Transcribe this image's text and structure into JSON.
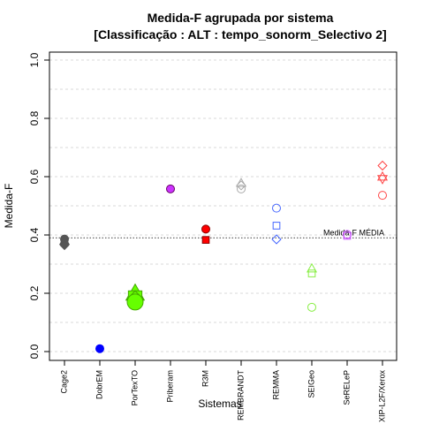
{
  "chart_data": {
    "type": "scatter",
    "title_line1": "Medida-F agrupada por sistema",
    "title_line2": "[Classificação : ALT : tempo_sonorm_Selectivo 2]",
    "xlabel": "Sistemas",
    "ylabel": "Medida-F",
    "ylim": [
      0.0,
      1.0
    ],
    "yticks": [
      {
        "value": 0.0,
        "label": "0.0"
      },
      {
        "value": 0.2,
        "label": "0.2"
      },
      {
        "value": 0.4,
        "label": "0.4"
      },
      {
        "value": 0.6,
        "label": "0.6"
      },
      {
        "value": 0.8,
        "label": "0.8"
      },
      {
        "value": 1.0,
        "label": "1.0"
      }
    ],
    "grid": true,
    "categories": [
      "Cage2",
      "DobrEM",
      "PorTexTO",
      "Priberam",
      "R3M",
      "REMBRANDT",
      "REMMA",
      "SEIGeo",
      "SeRELeP",
      "XIP-L2F/Xerox"
    ],
    "reference_line": {
      "value": 0.39,
      "label": "Medida-F MÉDIA"
    },
    "points": [
      {
        "category": "Cage2",
        "y": 0.386,
        "shape": "circle",
        "color": "#555555",
        "fill": "#555555"
      },
      {
        "category": "Cage2",
        "y": 0.38,
        "shape": "triangle",
        "color": "#555555",
        "fill": "#555555"
      },
      {
        "category": "Cage2",
        "y": 0.377,
        "shape": "square",
        "color": "#555555",
        "fill": "#555555"
      },
      {
        "category": "Cage2",
        "y": 0.365,
        "shape": "diamond",
        "color": "#555555",
        "fill": "#555555"
      },
      {
        "category": "DobrEM",
        "y": 0.01,
        "shape": "circle",
        "color": "#0000ff",
        "fill": "#0000ff"
      },
      {
        "category": "PorTexTO",
        "y": 0.2,
        "shape": "triangle",
        "color": "#44aa00",
        "fill": "#66ff00",
        "size": 9
      },
      {
        "category": "PorTexTO",
        "y": 0.185,
        "shape": "square",
        "color": "#44aa00",
        "fill": "#66ff00",
        "size": 9
      },
      {
        "category": "PorTexTO",
        "y": 0.178,
        "shape": "diamond",
        "color": "#44aa00",
        "fill": "#66ff00",
        "size": 9
      },
      {
        "category": "PorTexTO",
        "y": 0.17,
        "shape": "circle",
        "color": "#44aa00",
        "fill": "#66ff00",
        "size": 9
      },
      {
        "category": "Priberam",
        "y": 0.558,
        "shape": "circle",
        "color": "#660066",
        "fill": "#cc33ff"
      },
      {
        "category": "R3M",
        "y": 0.42,
        "shape": "circle",
        "color": "#880000",
        "fill": "#ff0000"
      },
      {
        "category": "R3M",
        "y": 0.383,
        "shape": "square",
        "color": "#880000",
        "fill": "#ff0000"
      },
      {
        "category": "REMBRANDT",
        "y": 0.578,
        "shape": "triangle",
        "color": "#aaaaaa",
        "fill": "none"
      },
      {
        "category": "REMBRANDT",
        "y": 0.57,
        "shape": "diamond",
        "color": "#aaaaaa",
        "fill": "none"
      },
      {
        "category": "REMBRANDT",
        "y": 0.558,
        "shape": "circle",
        "color": "#aaaaaa",
        "fill": "none"
      },
      {
        "category": "REMMA",
        "y": 0.492,
        "shape": "circle",
        "color": "#4466ff",
        "fill": "none"
      },
      {
        "category": "REMMA",
        "y": 0.432,
        "shape": "square",
        "color": "#4466ff",
        "fill": "none"
      },
      {
        "category": "REMMA",
        "y": 0.385,
        "shape": "diamond",
        "color": "#4466ff",
        "fill": "none"
      },
      {
        "category": "SEIGeo",
        "y": 0.285,
        "shape": "triangle",
        "color": "#88ee44",
        "fill": "none"
      },
      {
        "category": "SEIGeo",
        "y": 0.268,
        "shape": "square",
        "color": "#88ee44",
        "fill": "none"
      },
      {
        "category": "SEIGeo",
        "y": 0.152,
        "shape": "circle",
        "color": "#88ee44",
        "fill": "none"
      },
      {
        "category": "SeRELeP",
        "y": 0.402,
        "shape": "circle",
        "color": "#cc55ff",
        "fill": "none"
      },
      {
        "category": "SeRELeP",
        "y": 0.397,
        "shape": "square",
        "color": "#cc55ff",
        "fill": "none"
      },
      {
        "category": "XIP-L2F/Xerox",
        "y": 0.638,
        "shape": "diamond",
        "color": "#ff4444",
        "fill": "none"
      },
      {
        "category": "XIP-L2F/Xerox",
        "y": 0.6,
        "shape": "triangle",
        "color": "#ff4444",
        "fill": "none"
      },
      {
        "category": "XIP-L2F/Xerox",
        "y": 0.592,
        "shape": "triangledown",
        "color": "#ff4444",
        "fill": "none"
      },
      {
        "category": "XIP-L2F/Xerox",
        "y": 0.536,
        "shape": "circle",
        "color": "#ff4444",
        "fill": "none"
      }
    ]
  }
}
